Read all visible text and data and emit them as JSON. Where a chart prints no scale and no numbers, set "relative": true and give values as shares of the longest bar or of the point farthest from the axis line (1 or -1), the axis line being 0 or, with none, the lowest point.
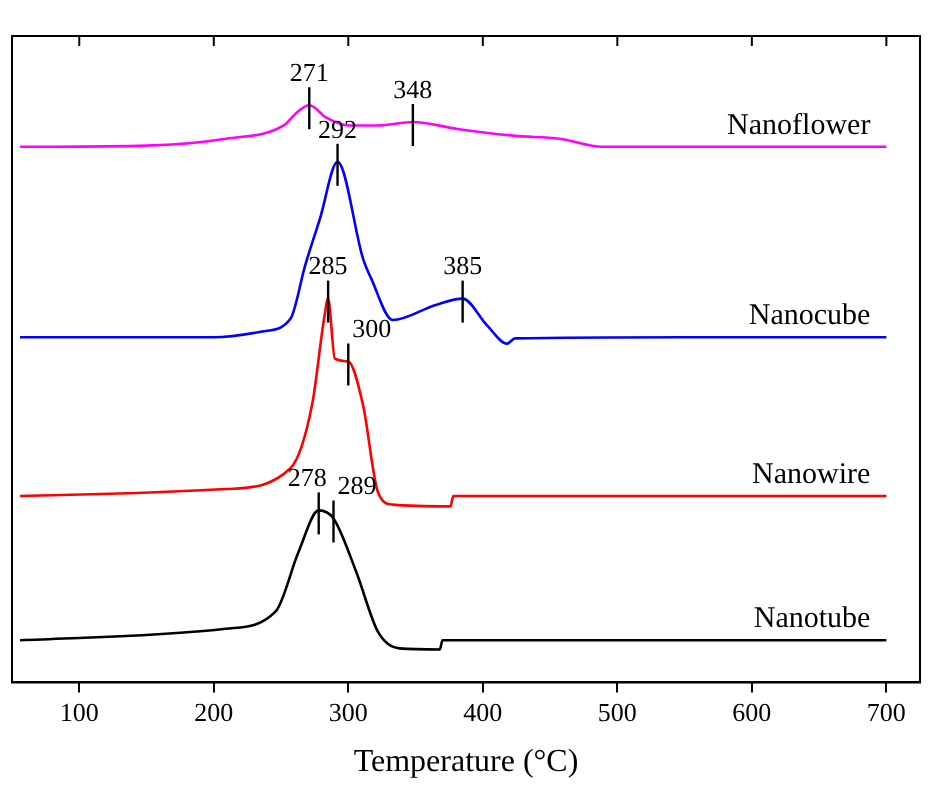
{
  "chart_data": {
    "type": "line",
    "relative": true,
    "xlabel": "Temperature (°C)",
    "xlim": [
      50,
      725
    ],
    "xticks": [
      100,
      200,
      300,
      400,
      500,
      600,
      700
    ],
    "grid": false,
    "legend": false,
    "marker": "none",
    "line_style": "solid",
    "series": [
      {
        "name": "Nanoflower",
        "color": "#ff00ff",
        "x": [
          56,
          150,
          209,
          252,
          262,
          271,
          284,
          300,
          322,
          348,
          381,
          424,
          457,
          489,
          600,
          700
        ],
        "values": [
          0.928,
          0.93,
          0.942,
          0.965,
          0.988,
          1.0,
          0.978,
          0.965,
          0.965,
          0.971,
          0.959,
          0.947,
          0.942,
          0.928,
          0.928,
          0.928
        ]
      },
      {
        "name": "Nanocube",
        "color": "#0000ff",
        "x": [
          56,
          200,
          236,
          257,
          268,
          279,
          292,
          311,
          317,
          333,
          365,
          385,
          403,
          418,
          424,
          550,
          700
        ],
        "values": [
          0.598,
          0.598,
          0.608,
          0.63,
          0.723,
          0.804,
          0.902,
          0.734,
          0.7,
          0.628,
          0.654,
          0.665,
          0.619,
          0.587,
          0.596,
          0.598,
          0.598
        ]
      },
      {
        "name": "Nanowire",
        "color": "#ff0000",
        "x": [
          56,
          209,
          257,
          273,
          282,
          285,
          290,
          300,
          311,
          322,
          333,
          376,
          378,
          700
        ],
        "values": [
          0.323,
          0.335,
          0.371,
          0.48,
          0.63,
          0.665,
          0.561,
          0.556,
          0.48,
          0.33,
          0.308,
          0.305,
          0.323,
          0.323
        ]
      },
      {
        "name": "Nanotube",
        "color": "#000000",
        "x": [
          56,
          209,
          246,
          263,
          278,
          289,
          306,
          322,
          338,
          368,
          370,
          700
        ],
        "values": [
          0.073,
          0.093,
          0.123,
          0.226,
          0.298,
          0.284,
          0.191,
          0.088,
          0.059,
          0.057,
          0.073,
          0.073
        ]
      }
    ],
    "annotations": [
      {
        "text": "271",
        "x": 271,
        "y": 1.0
      },
      {
        "text": "348",
        "x": 348,
        "y": 0.971
      },
      {
        "text": "292",
        "x": 292,
        "y": 0.902
      },
      {
        "text": "385",
        "x": 385,
        "y": 0.665
      },
      {
        "text": "285",
        "x": 285,
        "y": 0.665
      },
      {
        "text": "300",
        "x": 300,
        "y": 0.556
      },
      {
        "text": "278",
        "x": 278,
        "y": 0.298
      },
      {
        "text": "289",
        "x": 289,
        "y": 0.284
      }
    ]
  }
}
